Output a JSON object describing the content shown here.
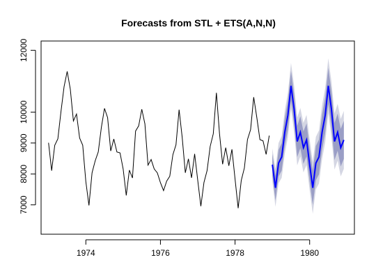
{
  "chart_data": {
    "type": "line",
    "title": "Forecasts from STL +  ETS(A,N,N)",
    "xlabel": "",
    "ylabel": "",
    "xlim": [
      1972.8,
      1981.2
    ],
    "ylim": [
      6050,
      12300
    ],
    "x_ticks": [
      1974,
      1976,
      1978,
      1980
    ],
    "y_ticks": [
      7000,
      8000,
      9000,
      10000,
      12000
    ],
    "grid": false,
    "history": {
      "start": 1973.0,
      "step": 0.0833333,
      "values": [
        9007,
        8106,
        8928,
        9137,
        10017,
        10826,
        11317,
        10744,
        9713,
        9938,
        9161,
        8927,
        7750,
        6981,
        8038,
        8422,
        8714,
        9512,
        10120,
        9823,
        8743,
        9129,
        8710,
        8680,
        8162,
        7306,
        8124,
        7870,
        9387,
        9556,
        10093,
        9620,
        8285,
        8466,
        8160,
        8034,
        7717,
        7461,
        7767,
        7925,
        8623,
        8945,
        10078,
        9179,
        8037,
        8488,
        7874,
        8647,
        7792,
        6957,
        7726,
        8106,
        8890,
        9299,
        10625,
        9302,
        8314,
        8850,
        8265,
        8796,
        7836,
        6892,
        7791,
        8192,
        9115,
        9434,
        10484,
        9827,
        9110,
        9070,
        8633,
        9240
      ]
    },
    "forecast": {
      "start": 1979.0,
      "step": 0.0833333,
      "mean": [
        8300,
        7550,
        8350,
        8550,
        9350,
        9900,
        10850,
        10100,
        9050,
        9350,
        8850,
        9100,
        8300,
        7550,
        8350,
        8550,
        9350,
        9900,
        10850,
        10100,
        9050,
        9350,
        8850,
        9100
      ],
      "lo80_w0": 350,
      "lo80_growth": 55,
      "lo95_w0": 530,
      "lo95_growth": 85,
      "color_mean": "#0000ff",
      "color_80": "#9a9ec6",
      "color_95": "#d4d6e3"
    }
  }
}
